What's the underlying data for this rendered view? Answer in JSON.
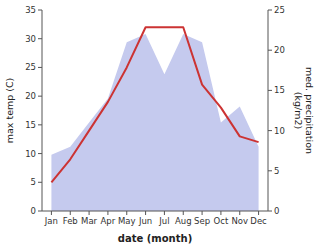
{
  "chart_data": {
    "type": "line",
    "categories": [
      "Jan",
      "Feb",
      "Mar",
      "Apr",
      "May",
      "Jun",
      "Jul",
      "Aug",
      "Sep",
      "Oct",
      "Nov",
      "Dec"
    ],
    "xlabel": "date (month)",
    "ylabel": "max temp (C)",
    "y2label": "med. precipitation\n(kg/m2)",
    "series": [
      {
        "type": "area",
        "axis": "y2",
        "color": "#c5caee",
        "values": [
          7,
          8,
          11,
          14,
          21,
          22,
          17,
          22,
          21,
          11,
          13,
          8
        ]
      },
      {
        "type": "line",
        "color": "#cc3333",
        "values": [
          5,
          9,
          14,
          19,
          25,
          32,
          32,
          32,
          22,
          18,
          13,
          12
        ]
      }
    ],
    "ylim": [
      0,
      35
    ],
    "yticks": [
      0,
      5,
      10,
      15,
      20,
      25,
      30,
      35
    ],
    "y2lim": [
      0,
      25
    ],
    "y2ticks": [
      0,
      5,
      10,
      15,
      20,
      25
    ],
    "grid": false
  }
}
